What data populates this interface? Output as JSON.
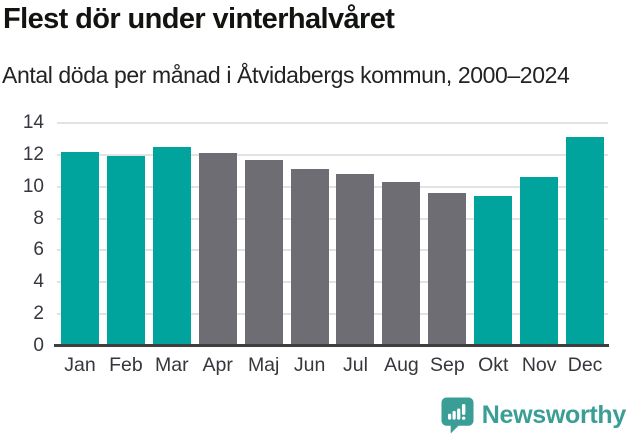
{
  "chart_data": {
    "type": "bar",
    "title": "Flest dör under vinterhalvåret",
    "subtitle": "Antal döda per månad i Åtvidabergs kommun, 2000–2024",
    "categories": [
      "Jan",
      "Feb",
      "Mar",
      "Apr",
      "Maj",
      "Jun",
      "Jul",
      "Aug",
      "Sep",
      "Okt",
      "Nov",
      "Dec"
    ],
    "values": [
      12.2,
      11.9,
      12.5,
      12.1,
      11.7,
      11.1,
      10.8,
      10.3,
      9.6,
      9.4,
      10.6,
      13.1
    ],
    "bar_colors": [
      "teal",
      "teal",
      "teal",
      "gray",
      "gray",
      "gray",
      "gray",
      "gray",
      "gray",
      "teal",
      "teal",
      "teal"
    ],
    "xlabel": "",
    "ylabel": "",
    "ylim": [
      0,
      14
    ],
    "yticks": [
      0,
      2,
      4,
      6,
      8,
      10,
      12,
      14
    ],
    "grid": true,
    "legend": false
  },
  "colors": {
    "teal": "#00A49D",
    "gray": "#6E6D73",
    "grid": "#E3E3E3",
    "axis": "#3F3F3F",
    "tick_label": "#38353C",
    "title": "#121410",
    "subtitle": "#222422",
    "logo": "#3A9E97"
  },
  "footer": {
    "brand": "Newsworthy"
  }
}
